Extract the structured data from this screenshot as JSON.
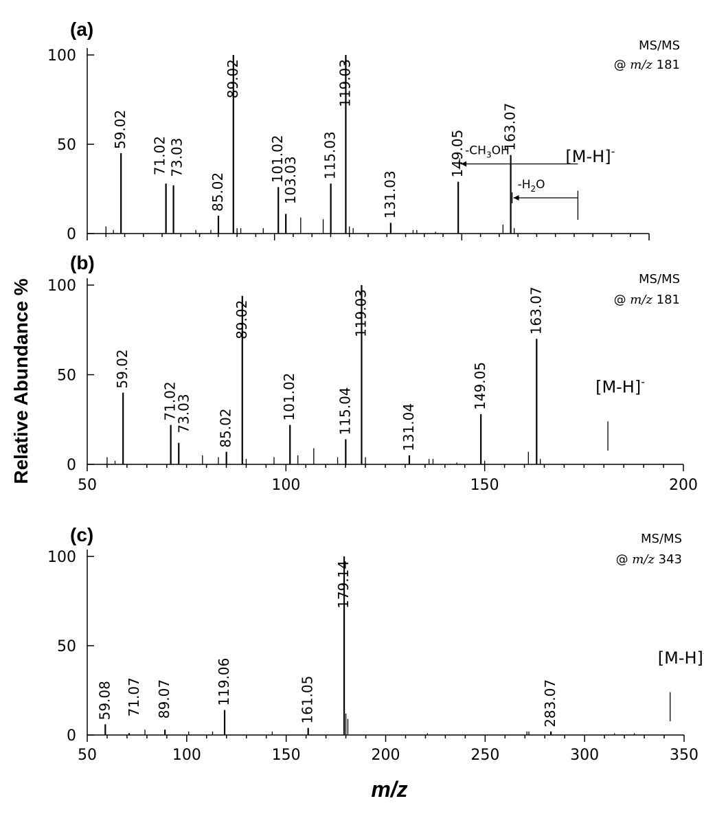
{
  "figure": {
    "ylabel": "Relative Abundance %",
    "xlabel": "m/z"
  },
  "chart_data": [
    {
      "type": "bar",
      "panel_label": "(a)",
      "precursor_line1": "MS/MS",
      "precursor_prefix": "@",
      "precursor_mz_label": "m/z",
      "precursor_value": "181",
      "xlim": [
        50,
        200
      ],
      "ylim": [
        0,
        100
      ],
      "yticks": [
        0,
        50,
        100
      ],
      "xticks": [],
      "peaks": [
        {
          "x": 59.02,
          "y": 45,
          "label": "59.02"
        },
        {
          "x": 71.02,
          "y": 28,
          "label": "71.02"
        },
        {
          "x": 73.03,
          "y": 27,
          "label": "73.03"
        },
        {
          "x": 85.02,
          "y": 10,
          "label": "85.02"
        },
        {
          "x": 89.02,
          "y": 100,
          "label": "89.02"
        },
        {
          "x": 101.02,
          "y": 26,
          "label": "101.02"
        },
        {
          "x": 103.03,
          "y": 11,
          "label": "103.03"
        },
        {
          "x": 115.03,
          "y": 28,
          "label": "115.03"
        },
        {
          "x": 119.03,
          "y": 100,
          "label": "119.03"
        },
        {
          "x": 131.03,
          "y": 6,
          "label": "131.03"
        },
        {
          "x": 149.05,
          "y": 29,
          "label": "149.05"
        },
        {
          "x": 163.07,
          "y": 44,
          "label": "163.07"
        }
      ],
      "minor": [
        {
          "x": 55,
          "y": 4
        },
        {
          "x": 57,
          "y": 2
        },
        {
          "x": 79,
          "y": 2
        },
        {
          "x": 83,
          "y": 2
        },
        {
          "x": 90,
          "y": 3
        },
        {
          "x": 91,
          "y": 3
        },
        {
          "x": 97,
          "y": 3
        },
        {
          "x": 107,
          "y": 9
        },
        {
          "x": 113,
          "y": 8
        },
        {
          "x": 120,
          "y": 4
        },
        {
          "x": 121,
          "y": 3
        },
        {
          "x": 137,
          "y": 2
        },
        {
          "x": 138,
          "y": 2
        },
        {
          "x": 143,
          "y": 1
        },
        {
          "x": 161,
          "y": 5
        },
        {
          "x": 164,
          "y": 3
        }
      ],
      "precursor_marker": {
        "x": 181,
        "label": "[M-H]",
        "sup": "-"
      },
      "losses": [
        {
          "from": 181,
          "to": 149.05,
          "y": 39,
          "label": "-CH",
          "sub": "3",
          "label_tail": "OH"
        },
        {
          "from": 181,
          "to": 163.07,
          "y": 20,
          "label": "-H",
          "sub": "2",
          "label_tail": "O"
        }
      ]
    },
    {
      "type": "bar",
      "panel_label": "(b)",
      "precursor_line1": "MS/MS",
      "precursor_prefix": "@",
      "precursor_mz_label": "m/z",
      "precursor_value": "181",
      "xlim": [
        50,
        200
      ],
      "ylim": [
        0,
        100
      ],
      "yticks": [
        0,
        50,
        100
      ],
      "xticks": [
        50,
        100,
        150,
        200
      ],
      "peaks": [
        {
          "x": 59.02,
          "y": 40,
          "label": "59.02"
        },
        {
          "x": 71.02,
          "y": 22,
          "label": "71.02"
        },
        {
          "x": 73.03,
          "y": 12,
          "label": "73.03"
        },
        {
          "x": 85.02,
          "y": 7,
          "label": "85.02"
        },
        {
          "x": 89.02,
          "y": 94,
          "label": "89.02"
        },
        {
          "x": 101.02,
          "y": 22,
          "label": "101.02"
        },
        {
          "x": 115.04,
          "y": 14,
          "label": "115.04"
        },
        {
          "x": 119.03,
          "y": 100,
          "label": "119.03"
        },
        {
          "x": 131.04,
          "y": 5,
          "label": "131.04"
        },
        {
          "x": 149.05,
          "y": 28,
          "label": "149.05"
        },
        {
          "x": 163.07,
          "y": 70,
          "label": "163.07"
        }
      ],
      "minor": [
        {
          "x": 55,
          "y": 4
        },
        {
          "x": 57,
          "y": 2
        },
        {
          "x": 79,
          "y": 5
        },
        {
          "x": 83,
          "y": 4
        },
        {
          "x": 90,
          "y": 3
        },
        {
          "x": 97,
          "y": 4
        },
        {
          "x": 103,
          "y": 5
        },
        {
          "x": 107,
          "y": 9
        },
        {
          "x": 113,
          "y": 4
        },
        {
          "x": 120,
          "y": 4
        },
        {
          "x": 136,
          "y": 3
        },
        {
          "x": 137,
          "y": 3
        },
        {
          "x": 143,
          "y": 1
        },
        {
          "x": 150,
          "y": 2
        },
        {
          "x": 161,
          "y": 7
        },
        {
          "x": 164,
          "y": 3
        }
      ],
      "precursor_marker": {
        "x": 181,
        "label": "[M-H]",
        "sup": "-"
      },
      "losses": []
    },
    {
      "type": "bar",
      "panel_label": "(c)",
      "precursor_line1": "MS/MS",
      "precursor_prefix": "@",
      "precursor_mz_label": "m/z",
      "precursor_value": "343",
      "xlim": [
        50,
        350
      ],
      "ylim": [
        0,
        100
      ],
      "yticks": [
        0,
        50,
        100
      ],
      "xticks": [
        50,
        100,
        150,
        200,
        250,
        300,
        350
      ],
      "peaks": [
        {
          "x": 59.08,
          "y": 6,
          "label": "59.08"
        },
        {
          "x": 71.07,
          "y": 1,
          "label": "71.07"
        },
        {
          "x": 89.07,
          "y": 3,
          "label": "89.07"
        },
        {
          "x": 119.06,
          "y": 14,
          "label": "119.06"
        },
        {
          "x": 161.05,
          "y": 4,
          "label": "161.05"
        },
        {
          "x": 179.14,
          "y": 100,
          "label": "179.14"
        },
        {
          "x": 283.07,
          "y": 2,
          "label": "283.07"
        }
      ],
      "minor": [
        {
          "x": 79,
          "y": 3
        },
        {
          "x": 101,
          "y": 2
        },
        {
          "x": 113,
          "y": 2
        },
        {
          "x": 143,
          "y": 2
        },
        {
          "x": 180,
          "y": 12
        },
        {
          "x": 181,
          "y": 9
        },
        {
          "x": 221,
          "y": 1
        },
        {
          "x": 271,
          "y": 2
        },
        {
          "x": 272,
          "y": 2
        },
        {
          "x": 315,
          "y": 1
        },
        {
          "x": 325,
          "y": 1
        }
      ],
      "precursor_marker": {
        "x": 343,
        "label": "[M-H]",
        "sup": "-"
      },
      "losses": []
    }
  ]
}
